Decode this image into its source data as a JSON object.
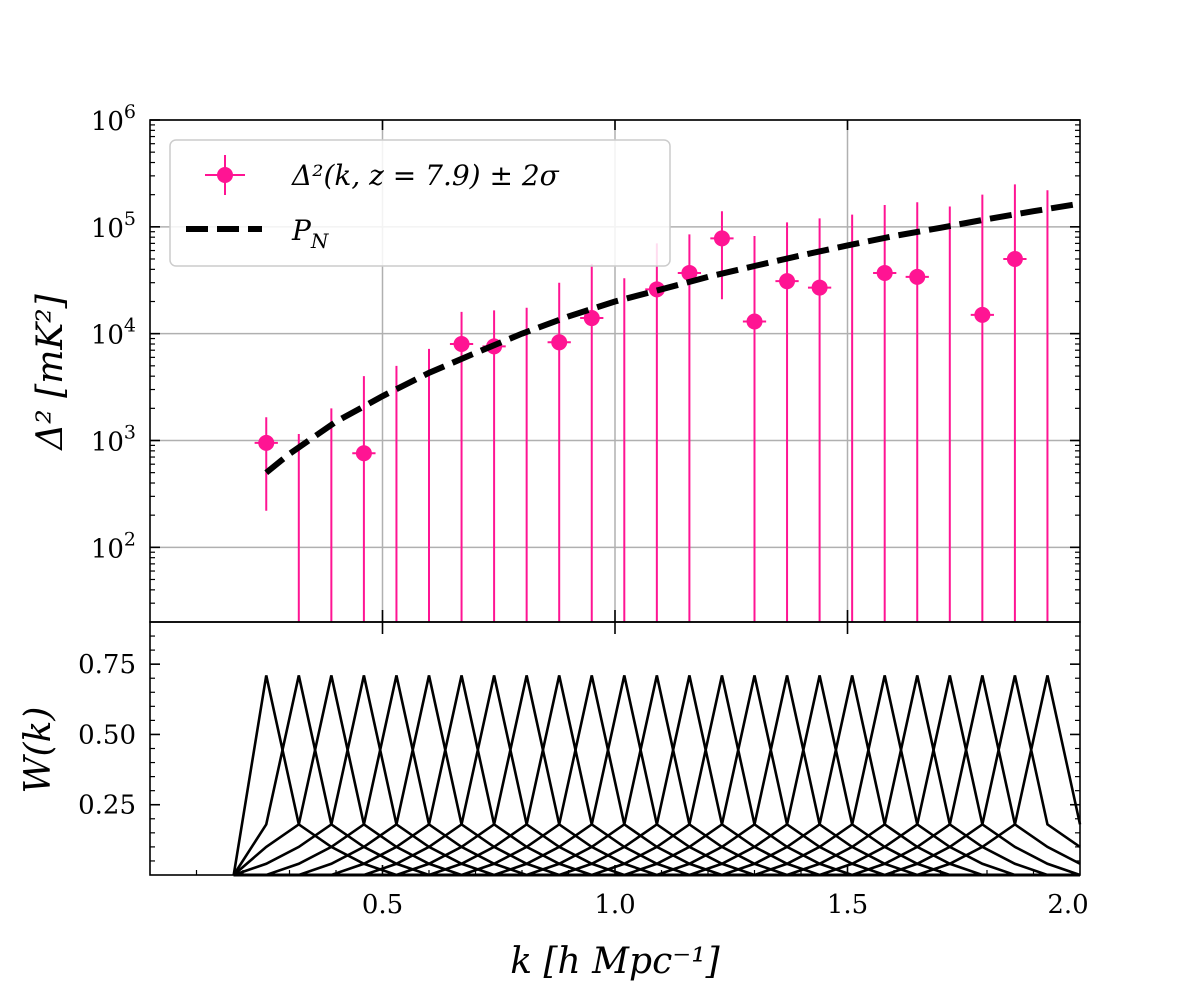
{
  "chart_data": [
    {
      "panel": "top",
      "type": "scatter",
      "xlim": [
        0.0,
        2.0
      ],
      "ylabel": "Δ² [mK²]",
      "yscale": "log",
      "ylim": [
        20,
        1000000
      ],
      "yticks": [
        {
          "value": 100,
          "base": "10",
          "exp": "2"
        },
        {
          "value": 1000,
          "base": "10",
          "exp": "3"
        },
        {
          "value": 10000,
          "base": "10",
          "exp": "4"
        },
        {
          "value": 100000,
          "base": "10",
          "exp": "5"
        },
        {
          "value": 1000000,
          "base": "10",
          "exp": "6"
        }
      ],
      "grid": true,
      "legend_position": "upper-left",
      "colors": {
        "points": "#ff1493",
        "noise": "#000000"
      },
      "series": [
        {
          "name": "Δ²(k,  z = 7.9)  ±  2σ",
          "kind": "errorbar",
          "xerr": 0.025,
          "points": [
            {
              "x": 0.25,
              "y": 950,
              "lo": 220,
              "hi": 1650
            },
            {
              "x": 0.32,
              "y": null,
              "lo": null,
              "hi": 1150
            },
            {
              "x": 0.39,
              "y": null,
              "lo": null,
              "hi": 2000
            },
            {
              "x": 0.46,
              "y": 760,
              "lo": null,
              "hi": 4000
            },
            {
              "x": 0.53,
              "y": null,
              "lo": null,
              "hi": 5000
            },
            {
              "x": 0.6,
              "y": null,
              "lo": null,
              "hi": 7200
            },
            {
              "x": 0.67,
              "y": 8000,
              "lo": null,
              "hi": 16000
            },
            {
              "x": 0.74,
              "y": 7600,
              "lo": null,
              "hi": 16500
            },
            {
              "x": 0.81,
              "y": null,
              "lo": null,
              "hi": 17500
            },
            {
              "x": 0.88,
              "y": 8300,
              "lo": null,
              "hi": 30000
            },
            {
              "x": 0.95,
              "y": 14000,
              "lo": null,
              "hi": 45000
            },
            {
              "x": 1.02,
              "y": null,
              "lo": null,
              "hi": 33000
            },
            {
              "x": 1.09,
              "y": 26000,
              "lo": null,
              "hi": 70000
            },
            {
              "x": 1.16,
              "y": 37000,
              "lo": null,
              "hi": 85000
            },
            {
              "x": 1.23,
              "y": 78000,
              "lo": 21000,
              "hi": 140000
            },
            {
              "x": 1.3,
              "y": 13000,
              "lo": null,
              "hi": 82000
            },
            {
              "x": 1.37,
              "y": 31000,
              "lo": null,
              "hi": 110000
            },
            {
              "x": 1.44,
              "y": 27000,
              "lo": null,
              "hi": 120000
            },
            {
              "x": 1.51,
              "y": null,
              "lo": null,
              "hi": 130000
            },
            {
              "x": 1.58,
              "y": 37000,
              "lo": null,
              "hi": 160000
            },
            {
              "x": 1.65,
              "y": 34000,
              "lo": null,
              "hi": 170000
            },
            {
              "x": 1.72,
              "y": null,
              "lo": null,
              "hi": 155000
            },
            {
              "x": 1.79,
              "y": 15000,
              "lo": null,
              "hi": 200000
            },
            {
              "x": 1.86,
              "y": 50000,
              "lo": null,
              "hi": 250000
            },
            {
              "x": 1.93,
              "y": null,
              "lo": null,
              "hi": 220000
            }
          ]
        },
        {
          "name": "P_N",
          "label_base": "P",
          "label_sub": "N",
          "kind": "dashed-line",
          "x": [
            0.25,
            0.3,
            0.4,
            0.5,
            0.6,
            0.7,
            0.8,
            0.9,
            1.0,
            1.1,
            1.2,
            1.3,
            1.4,
            1.5,
            1.6,
            1.7,
            1.8,
            1.9,
            2.0
          ],
          "y": [
            500,
            750,
            1500,
            2600,
            4300,
            6600,
            10000,
            14500,
            20000,
            26000,
            34000,
            43000,
            54000,
            67000,
            82000,
            98000,
            118000,
            140000,
            165000
          ]
        }
      ]
    },
    {
      "panel": "bottom",
      "type": "line",
      "xlabel": "k [h Mpc⁻¹]",
      "ylabel": "W(k)",
      "xlim": [
        0.0,
        2.0
      ],
      "ylim": [
        0.0,
        0.9
      ],
      "xticks": [
        "0.5",
        "1.0",
        "1.5",
        "2.0"
      ],
      "yticks": [
        "0.25",
        "0.50",
        "0.75"
      ],
      "grid": false,
      "window_functions": {
        "centers": [
          0.25,
          0.32,
          0.39,
          0.46,
          0.53,
          0.6,
          0.67,
          0.74,
          0.81,
          0.88,
          0.95,
          1.02,
          1.09,
          1.16,
          1.23,
          1.3,
          1.37,
          1.44,
          1.51,
          1.58,
          1.65,
          1.72,
          1.79,
          1.86,
          1.93
        ],
        "spacing": 0.07,
        "k_min": 0.18,
        "peak": 0.71,
        "first_neighbor": 0.18,
        "second_neighbor": 0.1,
        "third_neighbor": 0.04
      }
    }
  ]
}
